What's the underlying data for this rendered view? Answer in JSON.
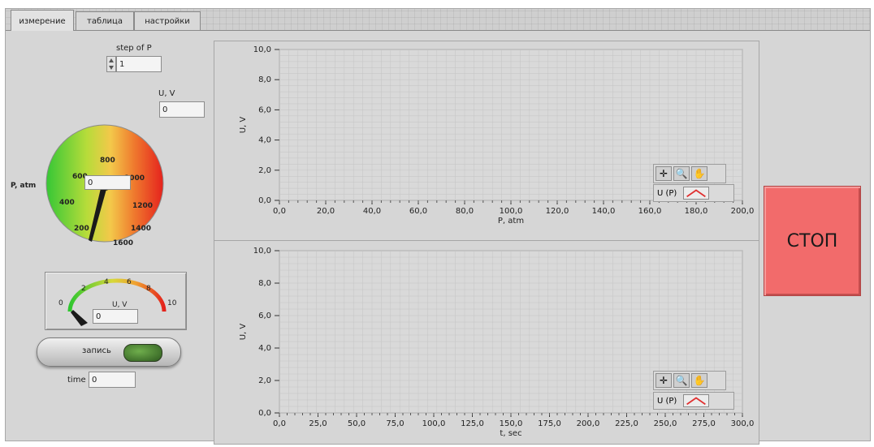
{
  "tabs": [
    {
      "label": "измерение",
      "active": true
    },
    {
      "label": "таблица",
      "active": false
    },
    {
      "label": "настройки",
      "active": false
    }
  ],
  "controls": {
    "step_label": "step of P",
    "step_value": "1",
    "uv_label": "U, V",
    "uv_value": "0",
    "pressure_label": "P, atm",
    "pressure_value": "0",
    "pressure_gauge_ticks": [
      "200",
      "400",
      "600",
      "800",
      "1000",
      "1200",
      "1400",
      "1600"
    ],
    "meter_ticks": [
      "0",
      "2",
      "4",
      "6",
      "8",
      "10"
    ],
    "meter_label": "U, V",
    "meter_value": "0",
    "record_label": "запись",
    "time_label": "time",
    "time_value": "0",
    "stop_label": "СТОП"
  },
  "graphs": {
    "top": {
      "ylabel": "U, V",
      "xlabel": "P, atm",
      "yticks": [
        "0,0",
        "2,0",
        "4,0",
        "6,0",
        "8,0",
        "10,0"
      ],
      "xticks": [
        "0,0",
        "20,0",
        "40,0",
        "60,0",
        "80,0",
        "100,0",
        "120,0",
        "140,0",
        "160,0",
        "180,0",
        "200,0"
      ],
      "legend": "U (P)"
    },
    "bottom": {
      "ylabel": "U, V",
      "xlabel": "t, sec",
      "yticks": [
        "0,0",
        "2,0",
        "4,0",
        "6,0",
        "8,0",
        "10,0"
      ],
      "xticks": [
        "0,0",
        "25,0",
        "50,0",
        "75,0",
        "100,0",
        "125,0",
        "150,0",
        "175,0",
        "200,0",
        "225,0",
        "250,0",
        "275,0",
        "300,0"
      ],
      "legend": "U (P)"
    }
  },
  "colors": {
    "stop_button": "#f26b6b",
    "plot_bg": "#d9d9d9",
    "grid": "#c4c4c4",
    "legend_line": "#e03030"
  }
}
